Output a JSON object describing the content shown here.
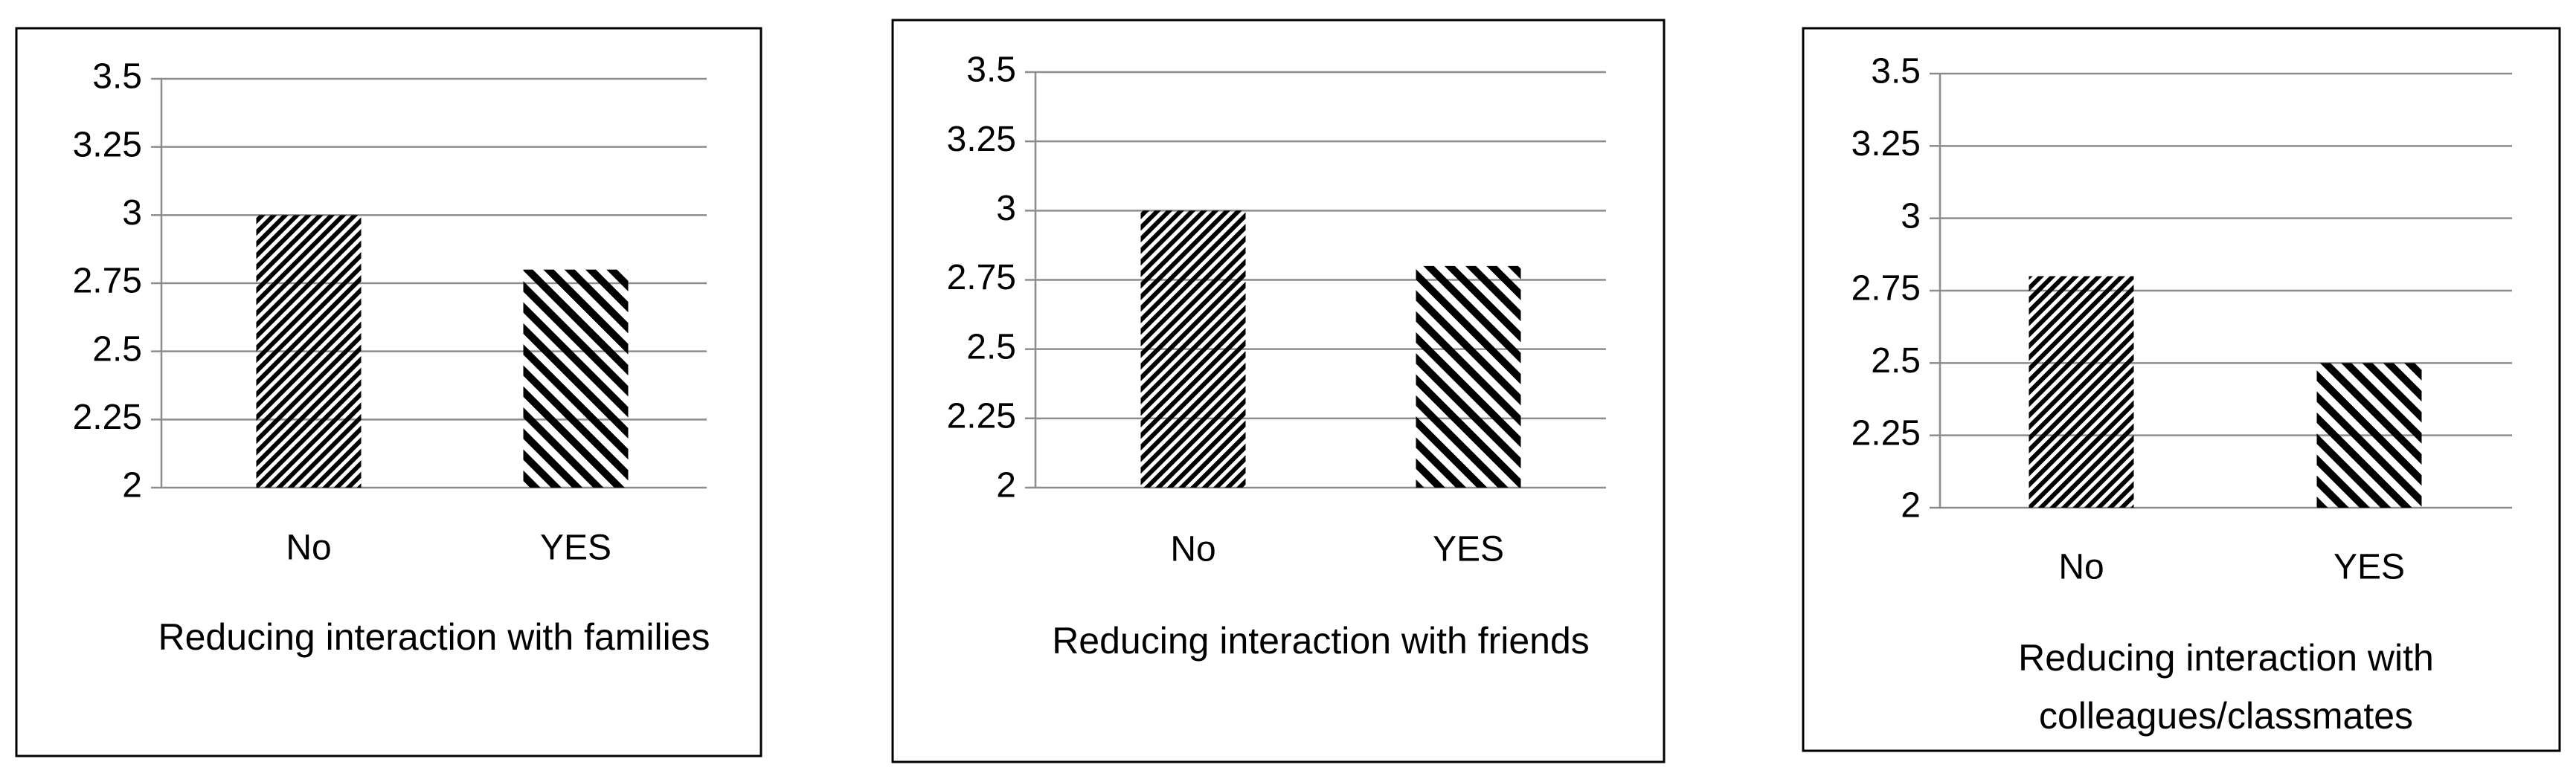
{
  "chart_data": [
    {
      "type": "bar",
      "categories": [
        "No",
        "YES"
      ],
      "values": [
        3,
        2.8
      ],
      "color": "#000000",
      "xlabel": "Reducing interaction with families",
      "ylim": [
        2,
        3.5
      ],
      "yticks": [
        2,
        2.25,
        2.5,
        2.75,
        3,
        3.25,
        3.5
      ],
      "grid": true
    },
    {
      "type": "bar",
      "categories": [
        "No",
        "YES"
      ],
      "values": [
        3,
        2.8
      ],
      "color": "#000000",
      "xlabel": "Reducing interaction with friends",
      "ylim": [
        2,
        3.5
      ],
      "yticks": [
        2,
        2.25,
        2.5,
        2.75,
        3,
        3.25,
        3.5
      ],
      "grid": true
    },
    {
      "type": "bar",
      "categories": [
        "No",
        "YES"
      ],
      "values": [
        2.8,
        2.5
      ],
      "color": "#000000",
      "xlabel": "Reducing interaction with colleagues/classmates",
      "ylim": [
        2,
        3.5
      ],
      "yticks": [
        2,
        2.25,
        2.5,
        2.75,
        3,
        3.25,
        3.5
      ],
      "grid": true
    }
  ]
}
